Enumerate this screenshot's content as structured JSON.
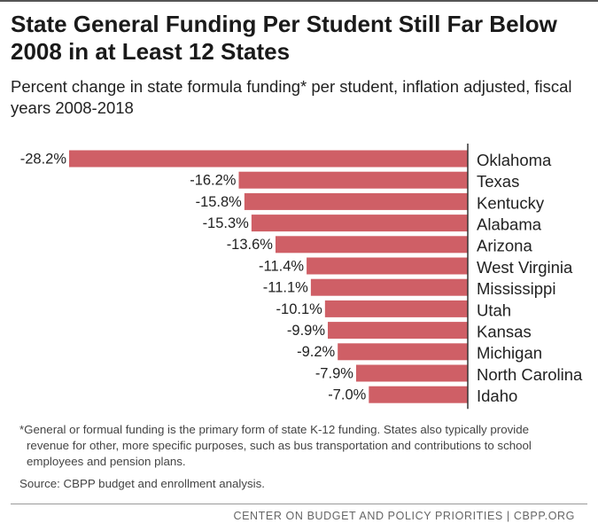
{
  "chart_data": {
    "type": "bar",
    "orientation": "horizontal",
    "title": "State General Funding Per Student Still Far Below 2008 in at Least 12 States",
    "subtitle": "Percent change in state formula funding* per student, inflation adjusted, fiscal years 2008-2018",
    "categories": [
      "Oklahoma",
      "Texas",
      "Kentucky",
      "Alabama",
      "Arizona",
      "West Virginia",
      "Mississippi",
      "Utah",
      "Kansas",
      "Michigan",
      "North Carolina",
      "Idaho"
    ],
    "values": [
      -28.2,
      -16.2,
      -15.8,
      -15.3,
      -13.6,
      -11.4,
      -11.1,
      -10.1,
      -9.9,
      -9.2,
      -7.9,
      -7.0
    ],
    "value_labels": [
      "-28.2%",
      "-16.2%",
      "-15.8%",
      "-15.3%",
      "-13.6%",
      "-11.4%",
      "-11.1%",
      "-10.1%",
      "-9.9%",
      "-9.2%",
      "-7.9%",
      "-7.0%"
    ],
    "color": "#cf5f66",
    "footnote": "*General or formual funding is the primary form of state K-12 funding. States also typically provide revenue for other, more specific purposes, such as bus transportation and contributions to school employees and pension plans.",
    "source": "Source: CBPP budget and enrollment analysis.",
    "credit": "CENTER ON BUDGET AND POLICY PRIORITIES | CBPP.ORG"
  }
}
